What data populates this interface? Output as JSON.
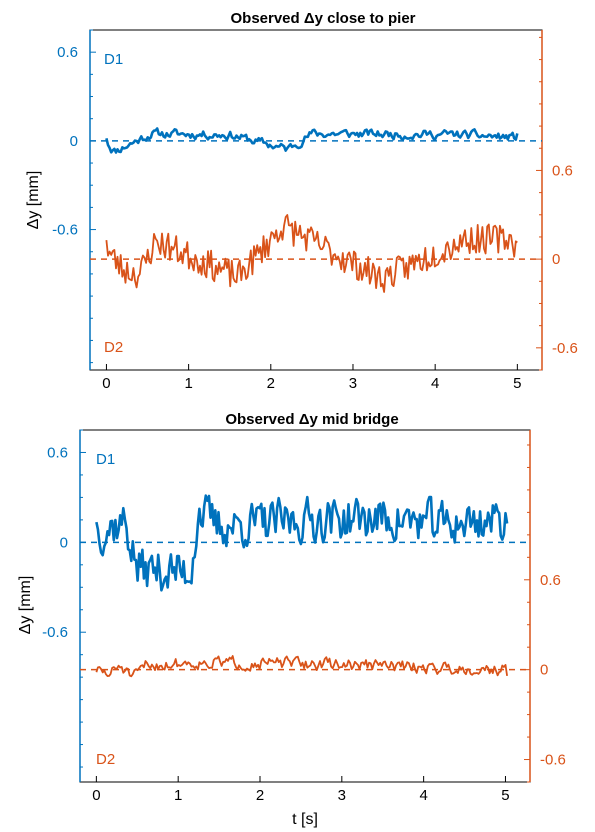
{
  "colors": {
    "d1": "#0072bd",
    "d2": "#d95319",
    "axis": "#000000"
  },
  "chart_data": [
    {
      "type": "line",
      "title": "Observed Δy close to pier",
      "xlabel": "",
      "ylabel": "Δy [mm]",
      "xlim": [
        -0.2,
        5.3
      ],
      "xticks": [
        0,
        1,
        2,
        3,
        4,
        5
      ],
      "left_ylim": [
        -1.55,
        0.75
      ],
      "left_yticks": [
        {
          "v": 0.6,
          "label": "0.6"
        },
        {
          "v": 0,
          "label": "0"
        },
        {
          "v": -0.6,
          "label": "-0.6"
        }
      ],
      "right_ylim": [
        -0.75,
        1.55
      ],
      "right_yticks": [
        {
          "v": 0.6,
          "label": "0.6"
        },
        {
          "v": 0,
          "label": "0"
        },
        {
          "v": -0.6,
          "label": "-0.6"
        }
      ],
      "series": [
        {
          "name": "D1",
          "axis": "left",
          "amp": 0.055,
          "seed": 11,
          "smooth": 0.55,
          "points": [
            [
              0,
              0.03
            ],
            [
              0.05,
              -0.12
            ],
            [
              0.1,
              -0.2
            ],
            [
              0.55,
              0.14
            ],
            [
              1.5,
              0.12
            ],
            [
              2.2,
              -0.16
            ],
            [
              2.5,
              0.14
            ],
            [
              4.3,
              0.12
            ],
            [
              5.0,
              0.06
            ]
          ]
        },
        {
          "name": "D2",
          "axis": "right",
          "amp": 0.1,
          "seed": 23,
          "smooth": 0.0,
          "points": [
            [
              0,
              0.18
            ],
            [
              0.2,
              -0.2
            ],
            [
              0.4,
              -0.3
            ],
            [
              0.6,
              0.35
            ],
            [
              1.6,
              -0.35
            ],
            [
              2.15,
              0.65
            ],
            [
              3.35,
              -0.38
            ],
            [
              4.35,
              0.38
            ],
            [
              4.95,
              0.4
            ],
            [
              5.0,
              0.08
            ]
          ]
        }
      ],
      "refs": [
        {
          "axis": "left",
          "value": 0,
          "color": "d1"
        },
        {
          "axis": "right",
          "value": 0,
          "color": "d2"
        }
      ]
    },
    {
      "type": "line",
      "title": "Observed Δy mid bridge",
      "xlabel": "t [s]",
      "ylabel": "Δy [mm]",
      "xlim": [
        -0.2,
        5.3
      ],
      "xticks": [
        0,
        1,
        2,
        3,
        4,
        5
      ],
      "left_ylim": [
        -1.6,
        0.75
      ],
      "left_yticks": [
        {
          "v": 0.6,
          "label": "0.6"
        },
        {
          "v": 0,
          "label": "0"
        },
        {
          "v": -0.6,
          "label": "-0.6"
        }
      ],
      "right_ylim": [
        -0.75,
        1.6
      ],
      "right_yticks": [
        {
          "v": 0.6,
          "label": "0.6"
        },
        {
          "v": 0,
          "label": "0"
        },
        {
          "v": -0.6,
          "label": "-0.6"
        }
      ],
      "series": [
        {
          "name": "D1",
          "axis": "left",
          "amp": 0.2,
          "seed": 37,
          "smooth": 0.35,
          "points": [
            [
              0,
              0.2
            ],
            [
              0.35,
              0.4
            ],
            [
              0.5,
              -0.5
            ],
            [
              1.15,
              -0.58
            ],
            [
              1.25,
              0.6
            ],
            [
              1.5,
              0.3
            ],
            [
              2.8,
              0.45
            ],
            [
              3.5,
              0.45
            ],
            [
              4.3,
              0.35
            ],
            [
              5.0,
              0.45
            ],
            [
              5.02,
              0.18
            ]
          ]
        },
        {
          "name": "D2",
          "axis": "right",
          "amp": 0.07,
          "seed": 51,
          "smooth": 0.5,
          "points": [
            [
              0,
              0.0
            ],
            [
              0.15,
              -0.1
            ],
            [
              0.3,
              0.08
            ],
            [
              0.45,
              -0.18
            ],
            [
              0.6,
              0.08
            ],
            [
              1.2,
              0.14
            ],
            [
              3.0,
              0.1
            ],
            [
              5.0,
              0.0
            ],
            [
              5.02,
              -0.08
            ]
          ]
        }
      ],
      "refs": [
        {
          "axis": "left",
          "value": 0,
          "color": "d1"
        },
        {
          "axis": "right",
          "value": 0,
          "color": "d2"
        }
      ]
    }
  ]
}
